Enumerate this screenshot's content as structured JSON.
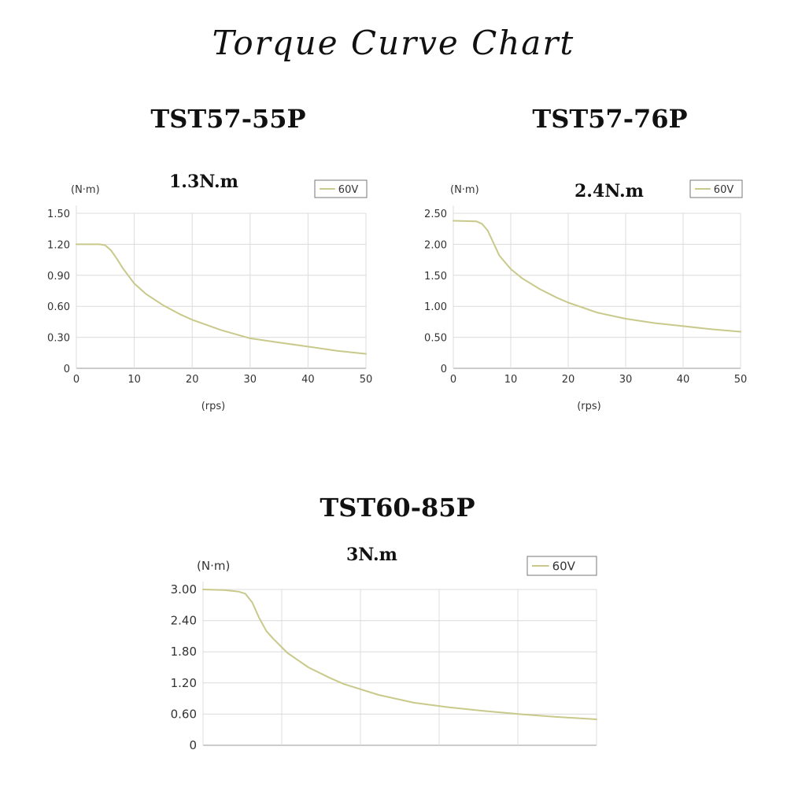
{
  "page": {
    "title": "Torque Curve Chart"
  },
  "chart_data": [
    {
      "type": "line",
      "model": "TST57-55P",
      "rating": "1.3N.m",
      "ylabel": "(N·m)",
      "xlabel": "(rps)",
      "xlim": [
        0,
        50
      ],
      "ylim": [
        0,
        1.5
      ],
      "x_ticks": [
        "0",
        "10",
        "20",
        "30",
        "40",
        "50"
      ],
      "y_ticks": [
        "0",
        "0.30",
        "0.60",
        "0.90",
        "1.20",
        "1.50"
      ],
      "grid": true,
      "legend_position": "top-right",
      "line_color": "#c8c98a",
      "series": [
        {
          "name": "60V",
          "x": [
            0,
            4,
            5,
            6,
            7,
            8,
            10,
            12,
            15,
            18,
            20,
            25,
            30,
            35,
            40,
            45,
            50
          ],
          "y": [
            1.2,
            1.2,
            1.19,
            1.14,
            1.06,
            0.97,
            0.82,
            0.72,
            0.61,
            0.52,
            0.47,
            0.37,
            0.29,
            0.25,
            0.21,
            0.17,
            0.14
          ]
        }
      ]
    },
    {
      "type": "line",
      "model": "TST57-76P",
      "rating": "2.4N.m",
      "ylabel": "(N·m)",
      "xlabel": "(rps)",
      "xlim": [
        0,
        50
      ],
      "ylim": [
        0,
        2.5
      ],
      "x_ticks": [
        "0",
        "10",
        "20",
        "30",
        "40",
        "50"
      ],
      "y_ticks": [
        "0",
        "0.50",
        "1.00",
        "1.50",
        "2.00",
        "2.50"
      ],
      "grid": true,
      "legend_position": "top-right",
      "line_color": "#c8c98a",
      "series": [
        {
          "name": "60V",
          "x": [
            0,
            4,
            5,
            6,
            7,
            8,
            10,
            12,
            15,
            18,
            20,
            25,
            30,
            35,
            40,
            45,
            50
          ],
          "y": [
            2.38,
            2.37,
            2.33,
            2.22,
            2.02,
            1.82,
            1.6,
            1.45,
            1.28,
            1.14,
            1.06,
            0.9,
            0.8,
            0.73,
            0.68,
            0.63,
            0.59
          ]
        }
      ]
    },
    {
      "type": "line",
      "model": "TST60-85P",
      "rating": "3N.m",
      "ylabel": "(N·m)",
      "xlabel": "",
      "xlim": [
        0,
        56
      ],
      "ylim": [
        0,
        3.0
      ],
      "x_ticks": [],
      "y_ticks": [
        "0",
        "0.60",
        "1.20",
        "1.80",
        "2.40",
        "3.00"
      ],
      "grid": true,
      "legend_position": "top-right",
      "line_color": "#c8c98a",
      "series": [
        {
          "name": "60V",
          "x": [
            0,
            3,
            5,
            6,
            7,
            8,
            9,
            10,
            12,
            15,
            18,
            20,
            25,
            30,
            35,
            40,
            45,
            50,
            56
          ],
          "y": [
            3.0,
            2.99,
            2.96,
            2.92,
            2.75,
            2.45,
            2.2,
            2.05,
            1.78,
            1.5,
            1.3,
            1.18,
            0.97,
            0.82,
            0.73,
            0.66,
            0.6,
            0.55,
            0.5
          ]
        }
      ]
    }
  ]
}
